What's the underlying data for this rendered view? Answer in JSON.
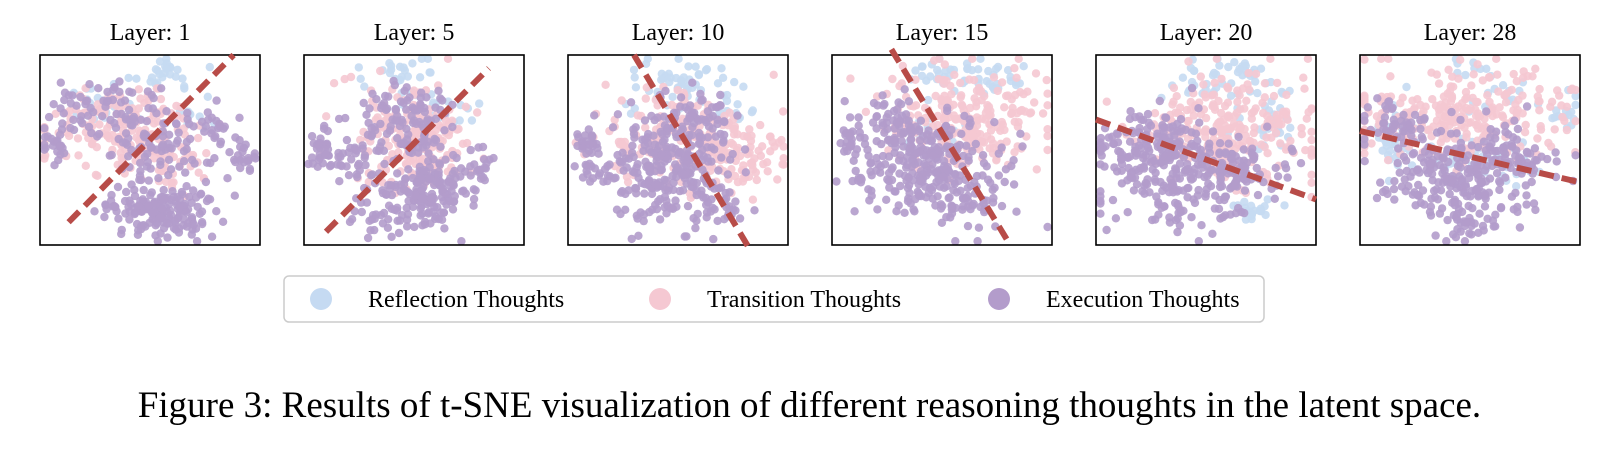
{
  "colors": {
    "reflection": "#c5daf2",
    "transition": "#f5c8d2",
    "execution": "#b39ccb",
    "boundary": "#b84c48",
    "frame": "#000000",
    "legend_border": "#cccccc"
  },
  "chart_data": {
    "type": "scatter",
    "grid": false,
    "legend_placement": "bottom-center",
    "legend": [
      {
        "key": "reflection",
        "label": "Reflection Thoughts"
      },
      {
        "key": "transition",
        "label": "Transition Thoughts"
      },
      {
        "key": "execution",
        "label": "Execution Thoughts"
      }
    ],
    "panels": [
      {
        "title": "Layer: 1",
        "boundary": [
          [
            0.13,
            0.88
          ],
          [
            0.88,
            0.0
          ]
        ]
      },
      {
        "title": "Layer: 5",
        "boundary": [
          [
            0.1,
            0.93
          ],
          [
            0.84,
            0.07
          ]
        ]
      },
      {
        "title": "Layer: 10",
        "boundary": [
          [
            0.3,
            0.0
          ],
          [
            0.83,
            1.03
          ]
        ]
      },
      {
        "title": "Layer: 15",
        "boundary": [
          [
            0.27,
            -0.03
          ],
          [
            0.81,
            1.0
          ]
        ]
      },
      {
        "title": "Layer: 20",
        "boundary": [
          [
            0.0,
            0.34
          ],
          [
            1.0,
            0.76
          ]
        ]
      },
      {
        "title": "Layer: 28",
        "boundary": [
          [
            0.0,
            0.4
          ],
          [
            1.0,
            0.67
          ]
        ]
      }
    ]
  },
  "caption": "Figure 3: Results of t-SNE visualization of different reasoning thoughts in the latent space."
}
